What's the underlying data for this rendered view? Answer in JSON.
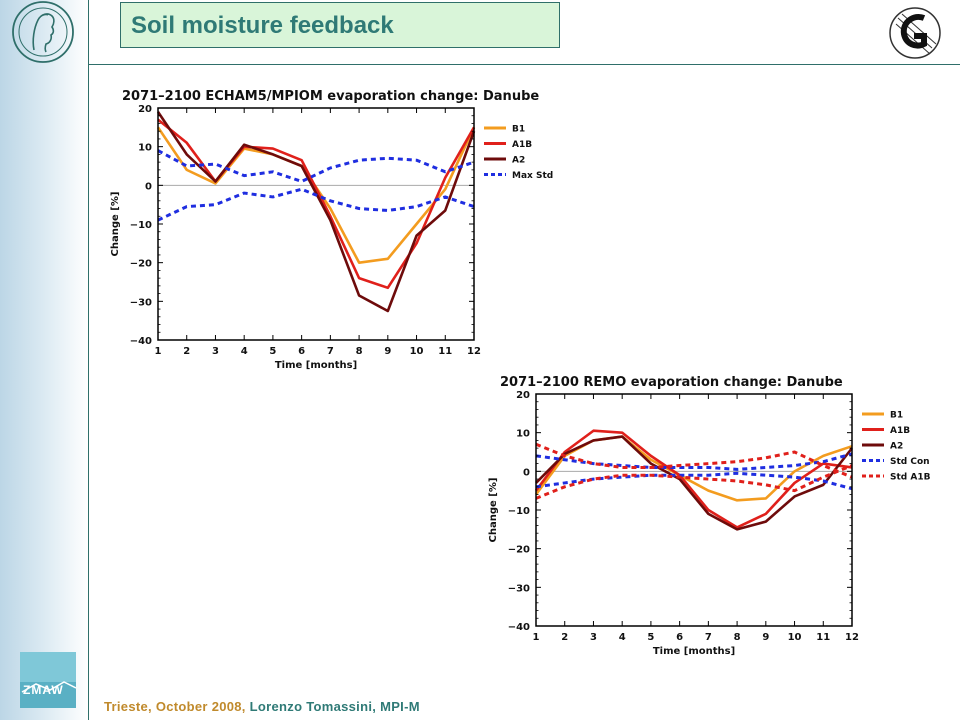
{
  "slide": {
    "title": "Soil moisture feedback",
    "footer_location": "Trieste, October 2008,",
    "footer_author": "Lorenzo Tomassini,  MPI-M",
    "logos": {
      "left_top": "max-planck-seal-icon",
      "left_bottom": "zmaw-icon",
      "right_top": "dkrz-icon"
    },
    "zmaw_text": "ZMAW"
  },
  "chart_data": [
    {
      "type": "line",
      "title": "2071–2100 ECHAM5/MPIOM evaporation change: Danube",
      "xlabel": "Time [months]",
      "ylabel": "Change [%]",
      "x": [
        1,
        2,
        3,
        4,
        5,
        6,
        7,
        8,
        9,
        10,
        11,
        12
      ],
      "xticks": [
        "1",
        "2",
        "3",
        "4",
        "5",
        "6",
        "7",
        "8",
        "9",
        "10",
        "11",
        "12"
      ],
      "ylim": [
        -40,
        20
      ],
      "yticks": [
        "20",
        "10",
        "0",
        "−10",
        "−20",
        "−30",
        "−40"
      ],
      "yticks_values": [
        20,
        10,
        0,
        -10,
        -20,
        -30,
        -40
      ],
      "zero_line": true,
      "legend_position": "right",
      "series": [
        {
          "name": "B1",
          "color": "#f39c1f",
          "dashed": false,
          "values": [
            15,
            4,
            0.5,
            9.5,
            8,
            5,
            -6,
            -20,
            -19,
            -10,
            -1,
            15
          ]
        },
        {
          "name": "A1B",
          "color": "#e0201b",
          "dashed": false,
          "values": [
            17,
            11,
            1,
            10,
            9.5,
            6.5,
            -8,
            -24,
            -26.5,
            -15,
            2,
            15
          ]
        },
        {
          "name": "A2",
          "color": "#6e0b0b",
          "dashed": false,
          "values": [
            19,
            8,
            1,
            10.5,
            8,
            5,
            -9,
            -28.5,
            -32.5,
            -13,
            -6.5,
            14
          ]
        },
        {
          "name": "Max Std",
          "color": "#1f2ee0",
          "dashed": true,
          "values": [
            9,
            5,
            5.5,
            2.5,
            3.5,
            1,
            4.5,
            6.5,
            7,
            6.5,
            3.5,
            6
          ]
        },
        {
          "name": "",
          "color": "#1f2ee0",
          "dashed": true,
          "values": [
            -9,
            -5.5,
            -5,
            -2,
            -3,
            -1,
            -4,
            -6,
            -6.5,
            -5.5,
            -3,
            -5.5
          ]
        }
      ]
    },
    {
      "type": "line",
      "title": "2071–2100 REMO evaporation change: Danube",
      "xlabel": "Time [months]",
      "ylabel": "Change [%]",
      "x": [
        1,
        2,
        3,
        4,
        5,
        6,
        7,
        8,
        9,
        10,
        11,
        12
      ],
      "xticks": [
        "1",
        "2",
        "3",
        "4",
        "5",
        "6",
        "7",
        "8",
        "9",
        "10",
        "11",
        "12"
      ],
      "ylim": [
        -40,
        20
      ],
      "yticks": [
        "20",
        "10",
        "0",
        "−10",
        "−20",
        "−30",
        "−40"
      ],
      "yticks_values": [
        20,
        10,
        0,
        -10,
        -20,
        -30,
        -40
      ],
      "zero_line": true,
      "legend_position": "right",
      "series": [
        {
          "name": "B1",
          "color": "#f39c1f",
          "dashed": false,
          "values": [
            -6,
            4,
            8,
            9,
            3,
            -1,
            -5,
            -7.5,
            -7,
            0,
            4,
            6.5
          ]
        },
        {
          "name": "A1B",
          "color": "#e0201b",
          "dashed": false,
          "values": [
            -5,
            5,
            10.5,
            10,
            4,
            -1,
            -10,
            -14.5,
            -11,
            -3,
            2,
            1
          ]
        },
        {
          "name": "A2",
          "color": "#6e0b0b",
          "dashed": false,
          "values": [
            -3,
            4.5,
            8,
            9,
            2,
            -2,
            -11,
            -15,
            -13,
            -6.5,
            -3.5,
            6
          ]
        },
        {
          "name": "Std Con",
          "color": "#1f2ee0",
          "dashed": true,
          "values": [
            4,
            3,
            2,
            1.5,
            1,
            1,
            1,
            0.5,
            1,
            1.5,
            2.5,
            4.5
          ]
        },
        {
          "name": "",
          "color": "#1f2ee0",
          "dashed": true,
          "values": [
            -4,
            -3,
            -2,
            -1.5,
            -1,
            -1,
            -1,
            -0.5,
            -1,
            -1.5,
            -2.5,
            -4.5
          ]
        },
        {
          "name": "Std A1B",
          "color": "#e0201b",
          "dashed": true,
          "values": [
            7,
            4,
            2,
            1,
            1,
            1.5,
            2,
            2.5,
            3.5,
            5,
            1.5,
            -1.5
          ]
        },
        {
          "name": "",
          "color": "#e0201b",
          "dashed": true,
          "values": [
            -7,
            -4,
            -2,
            -1,
            -1,
            -1.5,
            -2,
            -2.5,
            -3.5,
            -5,
            -1.5,
            1.5
          ]
        }
      ]
    }
  ]
}
